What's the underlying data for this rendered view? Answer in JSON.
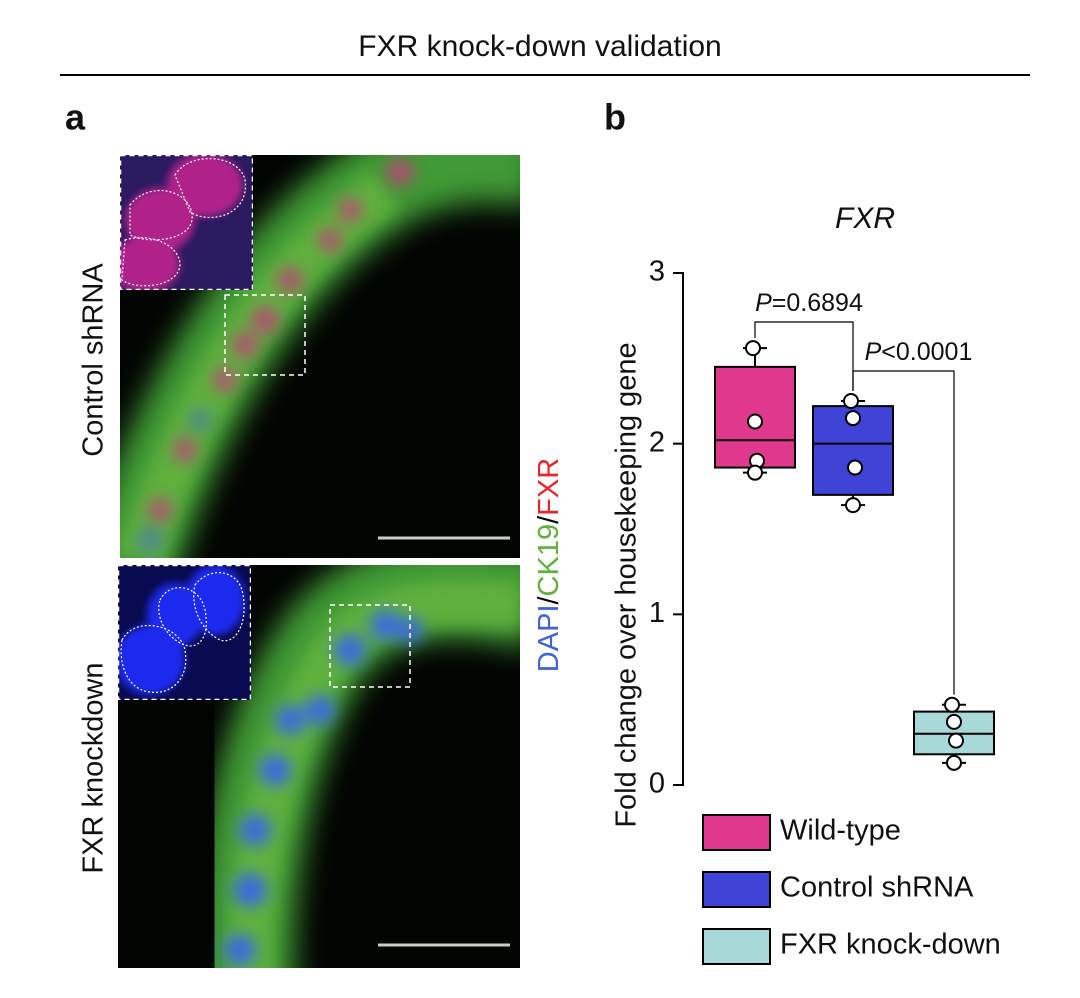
{
  "title": "FXR knock-down validation",
  "panel_a": {
    "label": "a",
    "rows": [
      "Control shRNA",
      "FXR knockdown"
    ],
    "stain": [
      {
        "text": "DAPI",
        "color": "#3f63d8"
      },
      {
        "text": "/",
        "color": "#000000"
      },
      {
        "text": "CK19",
        "color": "#5fb13c"
      },
      {
        "text": "/",
        "color": "#000000"
      },
      {
        "text": "FXR",
        "color": "#e8262a"
      }
    ]
  },
  "panel_b": {
    "label": "b"
  },
  "chart_data": {
    "type": "box",
    "title": "FXR",
    "ylabel": "Fold change over housekeeping gene",
    "ylim": [
      0,
      3
    ],
    "yticks": [
      0,
      1,
      2,
      3
    ],
    "series": [
      {
        "name": "Wild-type",
        "color": "#e0388c",
        "whisker_low": 1.83,
        "q1": 1.86,
        "median": 2.02,
        "q3": 2.45,
        "whisker_high": 2.56,
        "points": [
          2.56,
          2.13,
          1.9,
          1.83
        ]
      },
      {
        "name": "Control shRNA",
        "color": "#3f44d6",
        "whisker_low": 1.64,
        "q1": 1.7,
        "median": 2.0,
        "q3": 2.22,
        "whisker_high": 2.25,
        "points": [
          2.25,
          2.15,
          1.86,
          1.64
        ]
      },
      {
        "name": "FXR knock-down",
        "color": "#a9d8d8",
        "whisker_low": 0.13,
        "q1": 0.18,
        "median": 0.3,
        "q3": 0.43,
        "whisker_high": 0.47,
        "points": [
          0.47,
          0.37,
          0.26,
          0.13
        ]
      }
    ],
    "annotations": [
      {
        "symbol": "P",
        "text": "=0.6894"
      },
      {
        "symbol": "P",
        "text": "<0.0001"
      }
    ]
  }
}
